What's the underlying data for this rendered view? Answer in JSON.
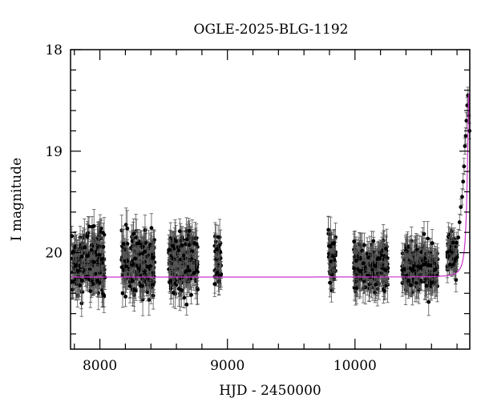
{
  "chart_data": {
    "type": "scatter",
    "title": "OGLE-2025-BLG-1192",
    "xlabel": "HJD - 2450000",
    "ylabel": "I magnitude",
    "xlim": [
      7770,
      10900
    ],
    "ylim": [
      20.95,
      18.0
    ],
    "y_inverted": true,
    "x_ticks": [
      8000,
      9000,
      10000
    ],
    "y_ticks": [
      18,
      19,
      20
    ],
    "grid": false,
    "legend": "none",
    "colors": {
      "points": "#000000",
      "errorbars": "#555555",
      "model": "#cc33cc"
    },
    "series": [
      {
        "kind": "observations_with_errorbars",
        "seasons": [
          {
            "x_range": [
              7780,
              8040
            ],
            "mag_center": 20.1,
            "mag_scatter": 0.32,
            "error": 0.12
          },
          {
            "x_range": [
              8170,
              8430
            ],
            "mag_center": 20.1,
            "mag_scatter": 0.3,
            "error": 0.12
          },
          {
            "x_range": [
              8540,
              8770
            ],
            "mag_center": 20.1,
            "mag_scatter": 0.28,
            "error": 0.12
          },
          {
            "x_range": [
              8900,
              8950
            ],
            "mag_center": 20.1,
            "mag_scatter": 0.25,
            "error": 0.12
          },
          {
            "x_range": [
              9790,
              9850
            ],
            "mag_center": 20.05,
            "mag_scatter": 0.28,
            "error": 0.12
          },
          {
            "x_range": [
              9990,
              10260
            ],
            "mag_center": 20.15,
            "mag_scatter": 0.22,
            "error": 0.12
          },
          {
            "x_range": [
              10370,
              10650
            ],
            "mag_center": 20.15,
            "mag_scatter": 0.22,
            "error": 0.12
          },
          {
            "x_range": [
              10720,
              10800
            ],
            "mag_center": 20.0,
            "mag_scatter": 0.18,
            "error": 0.1
          }
        ],
        "peak_points": [
          [
            10810,
            19.85
          ],
          [
            10820,
            19.7
          ],
          [
            10830,
            19.55
          ],
          [
            10840,
            19.45
          ],
          [
            10848,
            19.3
          ],
          [
            10855,
            19.15
          ],
          [
            10862,
            18.95
          ],
          [
            10868,
            18.85
          ],
          [
            10874,
            18.7
          ],
          [
            10880,
            18.55
          ],
          [
            10886,
            18.45
          ],
          [
            10892,
            18.65
          ],
          [
            10898,
            18.8
          ]
        ]
      },
      {
        "kind": "model_curve",
        "baseline_mag": 20.24,
        "peak_x": 10893,
        "peak_mag": 18.43
      }
    ]
  }
}
